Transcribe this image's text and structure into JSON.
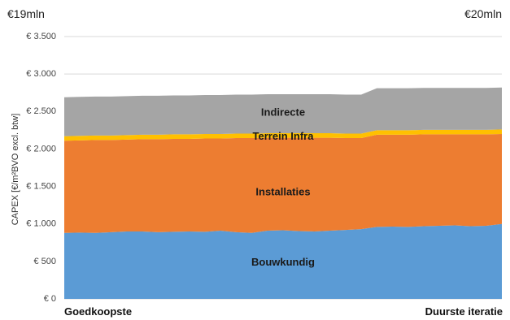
{
  "corner_labels": {
    "left": "€19mln",
    "right": "€20mln"
  },
  "x_end_labels": {
    "left": "Goedkoopste",
    "right": "Duurste iteratie"
  },
  "chart_data": {
    "type": "area",
    "stacked": true,
    "ylabel": "CAPEX [€/m²BVO excl. btw]",
    "ylim": [
      0,
      3500
    ],
    "yticks": [
      0,
      500,
      1000,
      1500,
      2000,
      2500,
      3000,
      3500
    ],
    "ytick_labels": [
      "€ 0",
      "€ 500",
      "€ 1.000",
      "€ 1.500",
      "€ 2.000",
      "€ 2.500",
      "€ 3.000",
      "€ 3.500"
    ],
    "grid": true,
    "x": [
      1,
      2,
      3,
      4,
      5,
      6,
      7,
      8,
      9,
      10,
      11,
      12,
      13,
      14,
      15,
      16,
      17,
      18,
      19,
      20,
      21,
      22,
      23,
      24,
      25,
      26,
      27,
      28,
      29
    ],
    "series": [
      {
        "name": "Bouwkundig",
        "color": "#5b9bd5",
        "values": [
          880,
          885,
          880,
          890,
          900,
          900,
          890,
          895,
          900,
          895,
          910,
          890,
          880,
          910,
          915,
          905,
          900,
          910,
          920,
          930,
          960,
          965,
          960,
          970,
          975,
          980,
          970,
          975,
          1000
        ]
      },
      {
        "name": "Installaties",
        "color": "#ed7d31",
        "values": [
          1230,
          1230,
          1240,
          1230,
          1225,
          1230,
          1240,
          1240,
          1235,
          1245,
          1230,
          1255,
          1265,
          1240,
          1235,
          1245,
          1250,
          1240,
          1225,
          1215,
          1230,
          1225,
          1230,
          1225,
          1220,
          1215,
          1225,
          1220,
          1200
        ]
      },
      {
        "name": "Terrein Infra",
        "color": "#ffc000",
        "values": [
          60,
          60,
          60,
          60,
          60,
          60,
          60,
          60,
          60,
          60,
          60,
          60,
          60,
          60,
          60,
          60,
          60,
          60,
          60,
          60,
          60,
          60,
          60,
          60,
          60,
          60,
          60,
          60,
          60
        ]
      },
      {
        "name": "Indirecte",
        "color": "#a5a5a5",
        "values": [
          520,
          520,
          520,
          520,
          520,
          520,
          520,
          520,
          520,
          520,
          520,
          520,
          520,
          520,
          520,
          520,
          520,
          520,
          520,
          520,
          560,
          560,
          560,
          560,
          560,
          560,
          560,
          560,
          560
        ]
      }
    ],
    "label_positions": {
      "Bouwkundig": 480,
      "Installaties": 1420,
      "Terrein Infra": 2160,
      "Indirecte": 2480
    }
  }
}
